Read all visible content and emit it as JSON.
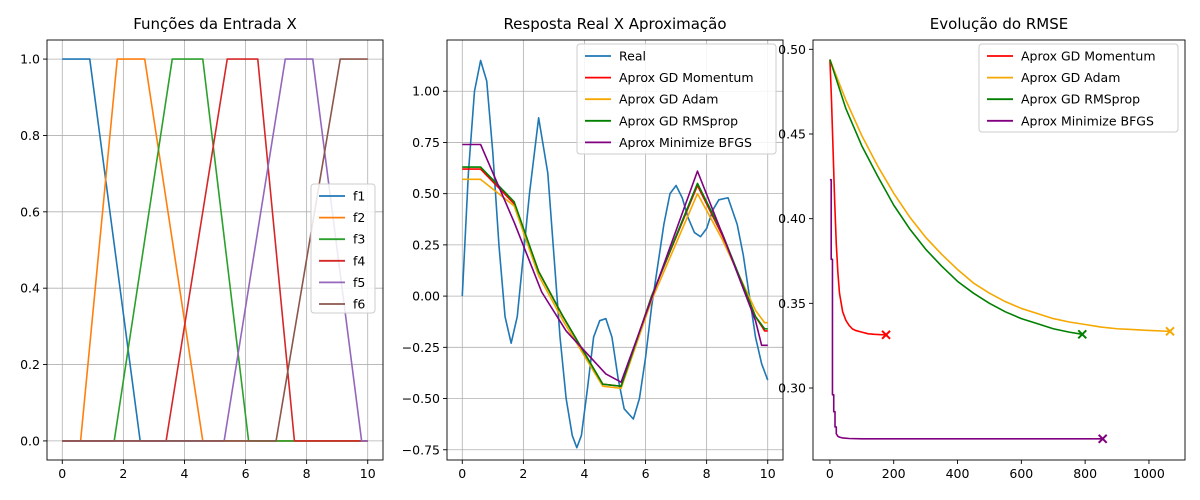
{
  "chart_data": [
    {
      "type": "line",
      "title": "Funções da Entrada X",
      "xlabel": "",
      "ylabel": "",
      "xlim": [
        -0.5,
        10.5
      ],
      "ylim": [
        -0.05,
        1.05
      ],
      "xticks": [
        "0",
        "2",
        "4",
        "6",
        "8",
        "10"
      ],
      "yticks": [
        "0.0",
        "0.2",
        "0.4",
        "0.6",
        "0.8",
        "1.0"
      ],
      "grid": true,
      "legend_position": "center-right",
      "series": [
        {
          "name": "f1",
          "color": "#1f77b4",
          "x": [
            0,
            0.9,
            2.55,
            10
          ],
          "y": [
            1,
            1,
            0,
            0
          ]
        },
        {
          "name": "f2",
          "color": "#ff7f0e",
          "x": [
            0,
            0.6,
            1.8,
            2.7,
            4.6,
            10
          ],
          "y": [
            0,
            0,
            1,
            1,
            0,
            0
          ]
        },
        {
          "name": "f3",
          "color": "#2ca02c",
          "x": [
            0,
            1.7,
            3.6,
            4.6,
            6.1,
            10
          ],
          "y": [
            0,
            0,
            1,
            1,
            0,
            0
          ]
        },
        {
          "name": "f4",
          "color": "#d62728",
          "x": [
            0,
            3.4,
            5.4,
            6.4,
            7.6,
            10
          ],
          "y": [
            0,
            0,
            1,
            1,
            0,
            0
          ]
        },
        {
          "name": "f5",
          "color": "#9467bd",
          "x": [
            0,
            5.3,
            7.3,
            8.2,
            9.8,
            10
          ],
          "y": [
            0,
            0,
            1,
            1,
            0,
            0
          ]
        },
        {
          "name": "f6",
          "color": "#8c564b",
          "x": [
            0,
            7.0,
            9.1,
            10
          ],
          "y": [
            0,
            0,
            1,
            1
          ]
        }
      ]
    },
    {
      "type": "line",
      "title": "Resposta Real X Aproximação",
      "xlabel": "",
      "ylabel": "",
      "xlim": [
        -0.5,
        10.5
      ],
      "ylim": [
        -0.8,
        1.25
      ],
      "xticks": [
        "0",
        "2",
        "4",
        "6",
        "8",
        "10"
      ],
      "yticks": [
        "−0.75",
        "−0.50",
        "−0.25",
        "0.00",
        "0.25",
        "0.50",
        "0.75",
        "1.00"
      ],
      "grid": true,
      "legend_position": "top-right",
      "series": [
        {
          "name": "Real",
          "color": "#1f77b4",
          "x": [
            0,
            0.2,
            0.4,
            0.6,
            0.8,
            1.0,
            1.2,
            1.4,
            1.6,
            1.8,
            2.0,
            2.2,
            2.5,
            2.8,
            3.0,
            3.2,
            3.4,
            3.6,
            3.75,
            3.9,
            4.1,
            4.3,
            4.5,
            4.7,
            4.9,
            5.1,
            5.3,
            5.6,
            5.8,
            6.0,
            6.2,
            6.4,
            6.6,
            6.8,
            7.0,
            7.2,
            7.4,
            7.6,
            7.8,
            8.0,
            8.2,
            8.4,
            8.7,
            9.0,
            9.2,
            9.4,
            9.6,
            9.8,
            10.0
          ],
          "y": [
            0.0,
            0.6,
            1.0,
            1.15,
            1.05,
            0.7,
            0.25,
            -0.1,
            -0.23,
            -0.1,
            0.2,
            0.5,
            0.87,
            0.6,
            0.2,
            -0.2,
            -0.5,
            -0.68,
            -0.74,
            -0.68,
            -0.45,
            -0.2,
            -0.12,
            -0.11,
            -0.2,
            -0.4,
            -0.55,
            -0.6,
            -0.5,
            -0.3,
            -0.05,
            0.15,
            0.35,
            0.5,
            0.54,
            0.48,
            0.38,
            0.31,
            0.29,
            0.33,
            0.42,
            0.47,
            0.48,
            0.35,
            0.2,
            0.0,
            -0.2,
            -0.33,
            -0.41
          ]
        },
        {
          "name": "Aprox GD Momentum",
          "color": "#ff0000",
          "x": [
            0,
            0.6,
            1.7,
            2.5,
            3.3,
            4.6,
            5.2,
            6.2,
            7.7,
            8.5,
            9.6,
            9.9,
            10.0
          ],
          "y": [
            0.62,
            0.62,
            0.45,
            0.12,
            -0.1,
            -0.43,
            -0.44,
            0.0,
            0.54,
            0.3,
            -0.1,
            -0.17,
            -0.17
          ]
        },
        {
          "name": "Aprox GD Adam",
          "color": "#f5a800",
          "x": [
            0,
            0.6,
            1.7,
            2.5,
            3.3,
            4.6,
            5.2,
            6.2,
            7.7,
            8.5,
            9.6,
            9.9,
            10.0
          ],
          "y": [
            0.57,
            0.57,
            0.44,
            0.1,
            -0.12,
            -0.44,
            -0.45,
            -0.02,
            0.5,
            0.28,
            -0.07,
            -0.13,
            -0.13
          ]
        },
        {
          "name": "Aprox GD RMSprop",
          "color": "#008000",
          "x": [
            0,
            0.6,
            1.7,
            2.5,
            3.3,
            4.6,
            5.2,
            6.2,
            7.7,
            8.5,
            9.6,
            9.9,
            10.0
          ],
          "y": [
            0.63,
            0.63,
            0.46,
            0.12,
            -0.1,
            -0.43,
            -0.44,
            0.0,
            0.55,
            0.31,
            -0.1,
            -0.16,
            -0.16
          ]
        },
        {
          "name": "Aprox Minimize BFGS",
          "color": "#800080",
          "x": [
            0,
            0.6,
            1.7,
            2.6,
            3.4,
            4.7,
            5.2,
            6.2,
            7.7,
            8.6,
            9.6,
            9.8,
            10.0
          ],
          "y": [
            0.74,
            0.74,
            0.36,
            0.02,
            -0.17,
            -0.38,
            -0.42,
            -0.01,
            0.61,
            0.27,
            -0.12,
            -0.24,
            -0.24
          ]
        }
      ]
    },
    {
      "type": "line",
      "title": "Evolução do RMSE",
      "xlabel": "",
      "ylabel": "",
      "xlim": [
        -53,
        1113
      ],
      "ylim": [
        0.2575,
        0.5055
      ],
      "xticks": [
        "0",
        "200",
        "400",
        "600",
        "800",
        "1000"
      ],
      "yticks": [
        "0.30",
        "0.35",
        "0.40",
        "0.45",
        "0.50"
      ],
      "grid": false,
      "legend_position": "top-right",
      "end_marker": "x",
      "series": [
        {
          "name": "Aprox GD Momentum",
          "color": "#ff0000",
          "x": [
            0,
            5,
            10,
            15,
            20,
            25,
            30,
            40,
            50,
            60,
            70,
            80,
            100,
            120,
            140,
            160,
            176
          ],
          "y": [
            0.494,
            0.47,
            0.44,
            0.41,
            0.385,
            0.368,
            0.356,
            0.345,
            0.34,
            0.337,
            0.335,
            0.334,
            0.333,
            0.332,
            0.3317,
            0.3315,
            0.3314
          ]
        },
        {
          "name": "Aprox GD Adam",
          "color": "#f5a800",
          "x": [
            0,
            50,
            100,
            150,
            200,
            250,
            300,
            350,
            400,
            450,
            500,
            550,
            600,
            650,
            700,
            750,
            800,
            850,
            900,
            950,
            1000,
            1050,
            1066
          ],
          "y": [
            0.494,
            0.47,
            0.449,
            0.431,
            0.415,
            0.401,
            0.389,
            0.379,
            0.37,
            0.362,
            0.356,
            0.351,
            0.347,
            0.344,
            0.341,
            0.339,
            0.3375,
            0.336,
            0.335,
            0.3345,
            0.334,
            0.3336,
            0.3335
          ]
        },
        {
          "name": "Aprox GD RMSprop",
          "color": "#008000",
          "x": [
            0,
            50,
            100,
            150,
            200,
            250,
            300,
            350,
            400,
            450,
            500,
            550,
            600,
            650,
            700,
            750,
            791
          ],
          "y": [
            0.494,
            0.465,
            0.443,
            0.425,
            0.408,
            0.394,
            0.382,
            0.372,
            0.363,
            0.356,
            0.35,
            0.345,
            0.341,
            0.338,
            0.335,
            0.333,
            0.3317
          ]
        },
        {
          "name": "Aprox Minimize BFGS",
          "color": "#800080",
          "x": [
            0,
            4,
            4,
            8,
            8,
            12,
            12,
            16,
            16,
            20,
            20,
            25,
            30,
            40,
            60,
            100,
            200,
            400,
            600,
            855
          ],
          "y": [
            0.423,
            0.423,
            0.376,
            0.376,
            0.296,
            0.296,
            0.286,
            0.286,
            0.277,
            0.277,
            0.273,
            0.2715,
            0.271,
            0.2705,
            0.2702,
            0.27,
            0.27,
            0.27,
            0.27,
            0.27
          ]
        }
      ]
    }
  ]
}
